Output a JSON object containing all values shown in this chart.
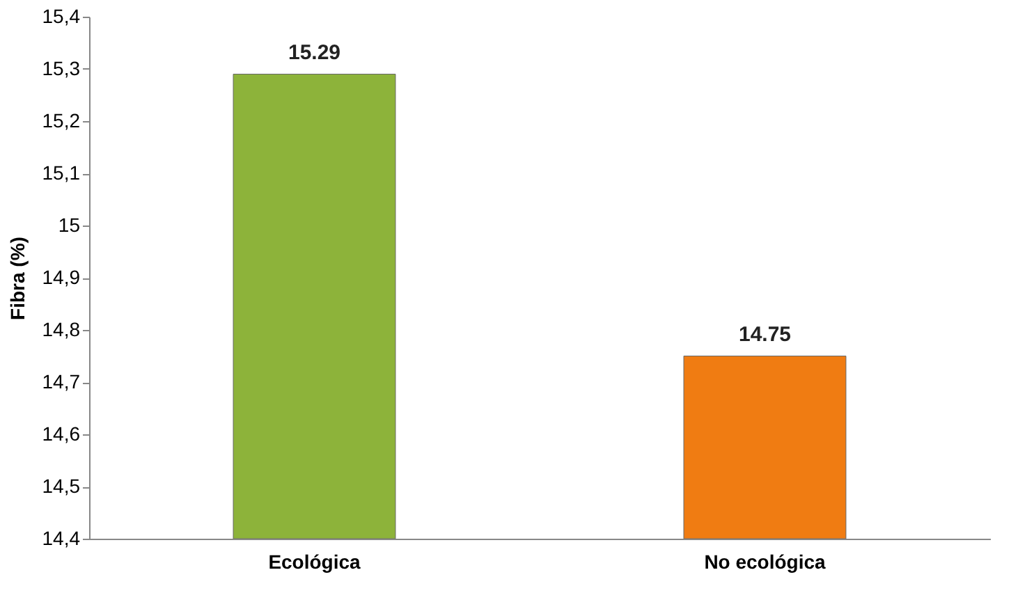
{
  "chart_data": {
    "type": "bar",
    "ylabel": "Fibra (%)",
    "categories": [
      "Ecológica",
      "No ecológica"
    ],
    "values": [
      15.29,
      14.75
    ],
    "colors": [
      "#8db33a",
      "#f07c12"
    ],
    "ylim": [
      14.4,
      15.4
    ],
    "yticks": [
      {
        "value": 14.4,
        "label": "14,4"
      },
      {
        "value": 14.5,
        "label": "14,5"
      },
      {
        "value": 14.6,
        "label": "14,6"
      },
      {
        "value": 14.7,
        "label": "14,7"
      },
      {
        "value": 14.8,
        "label": "14,8"
      },
      {
        "value": 14.9,
        "label": "14,9"
      },
      15,
      {
        "value": 15.1,
        "label": "15,1"
      },
      {
        "value": 15.2,
        "label": "15,2"
      },
      {
        "value": 15.3,
        "label": "15,3"
      },
      {
        "value": 15.4,
        "label": "15,4"
      }
    ],
    "data_labels": true,
    "grid": false
  }
}
